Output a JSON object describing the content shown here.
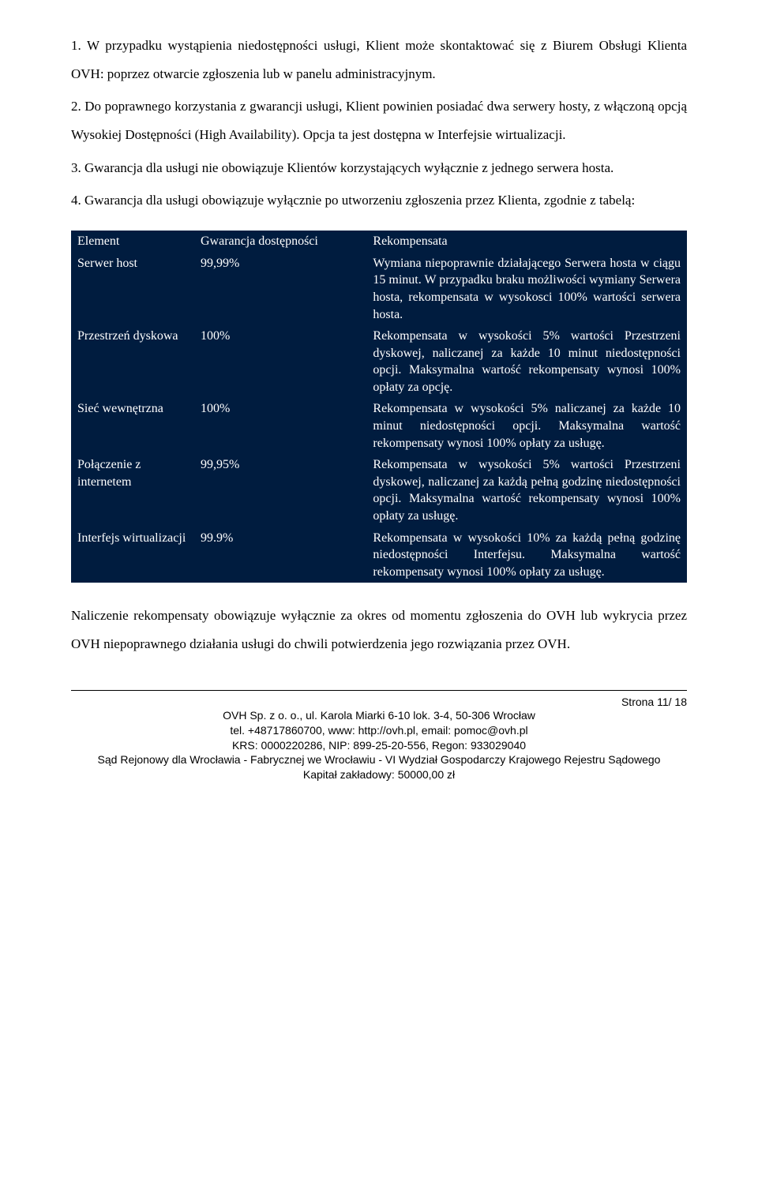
{
  "paragraphs": {
    "p1": "1. W przypadku wystąpienia niedostępności usługi, Klient może skontaktować się z Biurem Obsługi Klienta OVH: poprzez otwarcie zgłoszenia lub w panelu administracyjnym.",
    "p2": "2. Do poprawnego korzystania z gwarancji usługi, Klient powinien posiadać dwa serwery hosty, z włączoną opcją Wysokiej Dostępności (High Availability). Opcja ta jest dostępna w Interfejsie wirtualizacji.",
    "p3": "3. Gwarancja dla usługi nie obowiązuje Klientów korzystających wyłącznie z jednego serwera hosta.",
    "p4": "4. Gwarancja dla usługi obowiązuje wyłącznie po utworzeniu zgłoszenia przez Klienta, zgodnie z tabelą:",
    "p5": "Naliczenie rekompensaty obowiązuje wyłącznie za okres od momentu zgłoszenia do OVH lub wykrycia przez OVH niepoprawnego działania usługi do chwili potwierdzenia jego rozwiązania przez OVH."
  },
  "table": {
    "background_color": "#001c3f",
    "text_color": "#ffffff",
    "header": {
      "el": "Element",
      "gw": "Gwarancja dostępności",
      "rk": "Rekompensata"
    },
    "rows": [
      {
        "el": "Serwer host",
        "gw": "99,99%",
        "rk": "Wymiana niepoprawnie działającego Serwera hosta w ciągu 15 minut. W przypadku braku możliwości wymiany Serwera hosta, rekompensata w wysokosci 100% wartości serwera hosta."
      },
      {
        "el": "Przestrzeń dyskowa",
        "gw": "100%",
        "rk": "Rekompensata w wysokości 5% wartości Przestrzeni dyskowej, naliczanej za każde 10 minut niedostępności opcji. Maksymalna wartość rekompensaty wynosi 100% opłaty za opcję."
      },
      {
        "el": "Sieć wewnętrzna",
        "gw": "100%",
        "rk": "Rekompensata w wysokości 5% naliczanej za każde 10 minut niedostępności opcji. Maksymalna wartość rekompensaty wynosi 100% opłaty za usługę."
      },
      {
        "el": "Połączenie z internetem",
        "gw": "99,95%",
        "rk": "Rekompensata w wysokości 5% wartości Przestrzeni dyskowej, naliczanej za każdą pełną godzinę niedostępności opcji. Maksymalna wartość rekompensaty wynosi 100% opłaty za usługę."
      },
      {
        "el": "Interfejs wirtualizacji",
        "gw": "99.9%",
        "rk": "Rekompensata w wysokości 10% za każdą pełną godzinę niedostępności Interfejsu. Maksymalna wartość rekompensaty wynosi 100% opłaty za usługę."
      }
    ]
  },
  "footer": {
    "page_number": "Strona 11/ 18",
    "line1": "OVH Sp. z o. o., ul. Karola Miarki 6-10 lok. 3-4, 50-306 Wrocław",
    "line2": "tel. +48717860700, www: http://ovh.pl, email: pomoc@ovh.pl",
    "line3": "KRS: 0000220286, NIP: 899-25-20-556, Regon: 933029040",
    "line4": "Sąd Rejonowy dla Wrocławia - Fabrycznej we Wrocławiu - VI Wydział Gospodarczy Krajowego Rejestru Sądowego",
    "line5": "Kapitał zakładowy: 50000,00 zł"
  }
}
